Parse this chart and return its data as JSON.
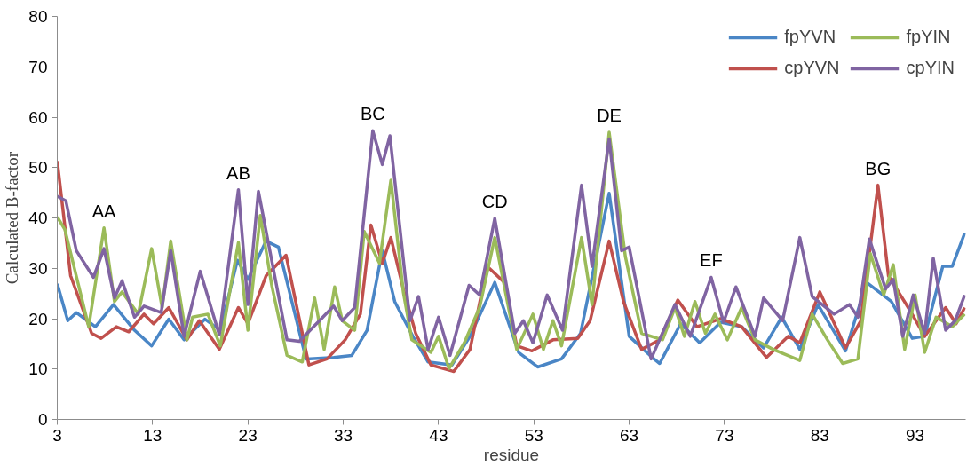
{
  "chart_data": {
    "type": "line",
    "xlabel": "residue",
    "ylabel": "Calculated B-factor",
    "xlim": [
      3,
      98.3
    ],
    "xticks": [
      3,
      13,
      23,
      33,
      43,
      53,
      63,
      73,
      83,
      93
    ],
    "ylim": [
      0,
      80
    ],
    "yticks": [
      0,
      10,
      20,
      30,
      40,
      50,
      60,
      70,
      80
    ],
    "grid": false,
    "legend": "top right",
    "line_style": "solid",
    "marker": "none",
    "annotations": [
      {
        "text": "AA",
        "x": 7.9,
        "y": 38
      },
      {
        "text": "AB",
        "x": 22,
        "y": 45.6
      },
      {
        "text": "BC",
        "x": 36.1,
        "y": 57.3
      },
      {
        "text": "CD",
        "x": 48.9,
        "y": 39.9
      },
      {
        "text": "DE",
        "x": 60.9,
        "y": 57
      },
      {
        "text": "EF",
        "x": 71.6,
        "y": 28.2
      },
      {
        "text": "BG",
        "x": 89.1,
        "y": 46.5
      }
    ],
    "series": [
      {
        "name": "fpYVN",
        "color": "#4a86c6",
        "x": [
          3,
          4.1,
          5,
          7,
          8.9,
          11.1,
          12.9,
          14.7,
          16.3,
          18.5,
          20.1,
          21.9,
          23,
          24.9,
          26.2,
          29.1,
          32,
          33.9,
          35.5,
          37.1,
          38.4,
          40.3,
          41.9,
          44.4,
          46.3,
          48.9,
          51.4,
          53.4,
          55.9,
          57.9,
          60.9,
          63,
          65.6,
          66.2,
          68.4,
          70.4,
          72.6,
          74.8,
          77.1,
          79,
          80.9,
          82.8,
          85.7,
          87.9,
          90.5,
          92.7,
          94,
          95.9,
          96.9,
          98.2
        ],
        "values": [
          26.9,
          19.6,
          21.2,
          18.4,
          22.8,
          17.7,
          14.6,
          19.9,
          15.8,
          19.9,
          17.7,
          31.6,
          27.8,
          35.4,
          34.2,
          12,
          12.3,
          12.7,
          17.7,
          33.5,
          23.4,
          16.5,
          11.4,
          10.8,
          16.5,
          27.2,
          13.3,
          10.4,
          12,
          17.1,
          44.9,
          16.5,
          12,
          11.1,
          19,
          15.2,
          19.3,
          18.4,
          14.2,
          20.3,
          13.9,
          22.8,
          13.6,
          27.2,
          23.4,
          16.1,
          16.5,
          30.4,
          30.4,
          37
        ]
      },
      {
        "name": "cpYVN",
        "color": "#c0504d",
        "x": [
          3,
          4.4,
          6.6,
          7.6,
          9.2,
          10.5,
          12.1,
          13.1,
          14.7,
          16.6,
          17.9,
          20,
          22,
          23,
          24.9,
          27,
          27.8,
          29.4,
          31.3,
          33.2,
          34.8,
          35.9,
          37.1,
          38,
          39.3,
          40.6,
          42.2,
          44.6,
          46.3,
          48.1,
          49.9,
          51.2,
          52.8,
          55,
          57.6,
          58.9,
          60.9,
          62.4,
          64.3,
          66.2,
          68.1,
          70.1,
          72.6,
          74.8,
          77.4,
          79.7,
          80.9,
          83,
          85.7,
          87.3,
          89.1,
          90.2,
          92.5,
          94,
          96.2,
          97.3,
          98.2
        ],
        "values": [
          51.3,
          28.5,
          17.1,
          16.1,
          18.4,
          17.4,
          20.9,
          19,
          22.2,
          15.8,
          19.6,
          13.9,
          22.2,
          19,
          28.5,
          32.6,
          25.3,
          10.8,
          12,
          15.8,
          20.9,
          38.6,
          31,
          36.1,
          25.9,
          17.1,
          10.8,
          9.5,
          13.9,
          30.4,
          27.2,
          14.6,
          13.6,
          15.8,
          16.1,
          19.6,
          35.4,
          23.4,
          13.9,
          15.8,
          23.7,
          18.4,
          20,
          18.4,
          12.3,
          16.5,
          15.2,
          25.3,
          14.2,
          19.6,
          46.5,
          28.5,
          21.5,
          16.5,
          22.2,
          19,
          22.2
        ]
      },
      {
        "name": "fpYIN",
        "color": "#9bbb59",
        "x": [
          3,
          3.8,
          6.3,
          7.9,
          9,
          9.8,
          11.5,
          12.9,
          14,
          14.9,
          16.6,
          17.2,
          18.8,
          20.1,
          22,
          23,
          24.3,
          25.5,
          27.1,
          28.7,
          30,
          31,
          32.1,
          32.9,
          34.2,
          35.2,
          36.8,
          38,
          39.3,
          40.2,
          42.2,
          43,
          44.1,
          45.7,
          47.3,
          48.9,
          51.2,
          52.9,
          54,
          55,
          55.9,
          58,
          59.1,
          60.9,
          62.6,
          64.3,
          66.5,
          67.8,
          68.8,
          69.9,
          71,
          72,
          73.3,
          74.8,
          76.2,
          78.1,
          80.9,
          82.2,
          83.8,
          85.4,
          87,
          88.3,
          89.7,
          90.7,
          91.9,
          93,
          94,
          95.2,
          96.9,
          98.2
        ],
        "values": [
          40.2,
          37.7,
          18.4,
          38,
          23.4,
          25.3,
          20.9,
          33.9,
          22.2,
          35.4,
          15.8,
          20.3,
          20.9,
          14.6,
          35.1,
          17.7,
          40.5,
          26.6,
          12.7,
          11.4,
          24.1,
          13.9,
          26.3,
          19.6,
          17.7,
          37.3,
          31,
          47.5,
          25.3,
          15.8,
          13.3,
          16.5,
          10.1,
          15.2,
          22.2,
          36.1,
          13.9,
          20.9,
          13.9,
          19.6,
          14.6,
          36.1,
          22.8,
          57,
          32.3,
          17.1,
          15.8,
          22.2,
          16.5,
          23.4,
          17.1,
          20.9,
          15.8,
          22.2,
          15.8,
          13.9,
          11.7,
          20.9,
          15.8,
          11.1,
          12,
          32.9,
          24.7,
          30.7,
          13.9,
          24.7,
          13.3,
          20.3,
          18.4,
          20.9
        ]
      },
      {
        "name": "cpYIN",
        "color": "#8064a2",
        "x": [
          3,
          3.9,
          5,
          6.8,
          7.9,
          9,
          9.8,
          11.1,
          12.1,
          13.9,
          14.9,
          16.3,
          18,
          20,
          22,
          23,
          24.1,
          27.1,
          28.4,
          32,
          32.9,
          34.2,
          36.1,
          37.1,
          37.9,
          40,
          40.9,
          41.9,
          43,
          44.2,
          46.2,
          47.3,
          48.9,
          51,
          51.9,
          52.9,
          54.4,
          56,
          58,
          59.1,
          60.9,
          62.2,
          63,
          65.3,
          67.8,
          69.4,
          71.6,
          72.9,
          74.2,
          76.2,
          77.1,
          79.1,
          80.9,
          82.2,
          84.5,
          86.1,
          87,
          88.2,
          89.9,
          90.7,
          91.7,
          92.8,
          94,
          94.9,
          96.2,
          97.2,
          98.2
        ],
        "values": [
          44.3,
          43.4,
          33.5,
          28.2,
          33.9,
          24.1,
          27.5,
          20.3,
          22.5,
          21.2,
          33.5,
          16.5,
          29.4,
          16.8,
          45.6,
          22.8,
          45.3,
          15.8,
          15.5,
          22.5,
          19.6,
          22.2,
          57.3,
          50.6,
          56.3,
          19.6,
          24.4,
          13.9,
          20.3,
          12.7,
          26.6,
          24.7,
          39.9,
          17.1,
          19.6,
          15.2,
          24.7,
          17.7,
          46.5,
          30.4,
          55.7,
          33.5,
          34.2,
          12,
          22.8,
          16.5,
          28.2,
          19.3,
          26.3,
          16.5,
          24.1,
          19.6,
          36.1,
          24.4,
          20.9,
          22.8,
          20.3,
          35.8,
          25.9,
          27.8,
          16.5,
          24.7,
          17.1,
          32,
          17.7,
          19.6,
          24.7
        ]
      }
    ]
  }
}
